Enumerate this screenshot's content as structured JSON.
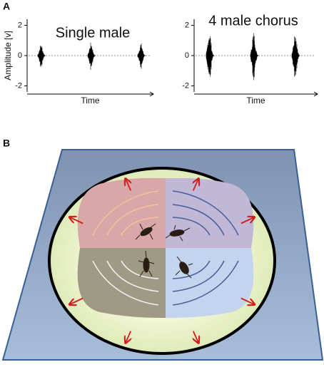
{
  "panels": [
    {
      "label": "A",
      "plots": [
        {
          "title": "Single male",
          "y_label": "Amplitude [v]",
          "x_label": "Time",
          "ylim": [
            -2.4,
            2.4
          ],
          "yticks": [
            2,
            0,
            -2
          ]
        },
        {
          "title": "4 male chorus",
          "x_label": "Time",
          "ylim": [
            -2.4,
            2.4
          ],
          "yticks": [
            2,
            0,
            -2
          ]
        }
      ]
    },
    {
      "label": "B"
    }
  ]
}
